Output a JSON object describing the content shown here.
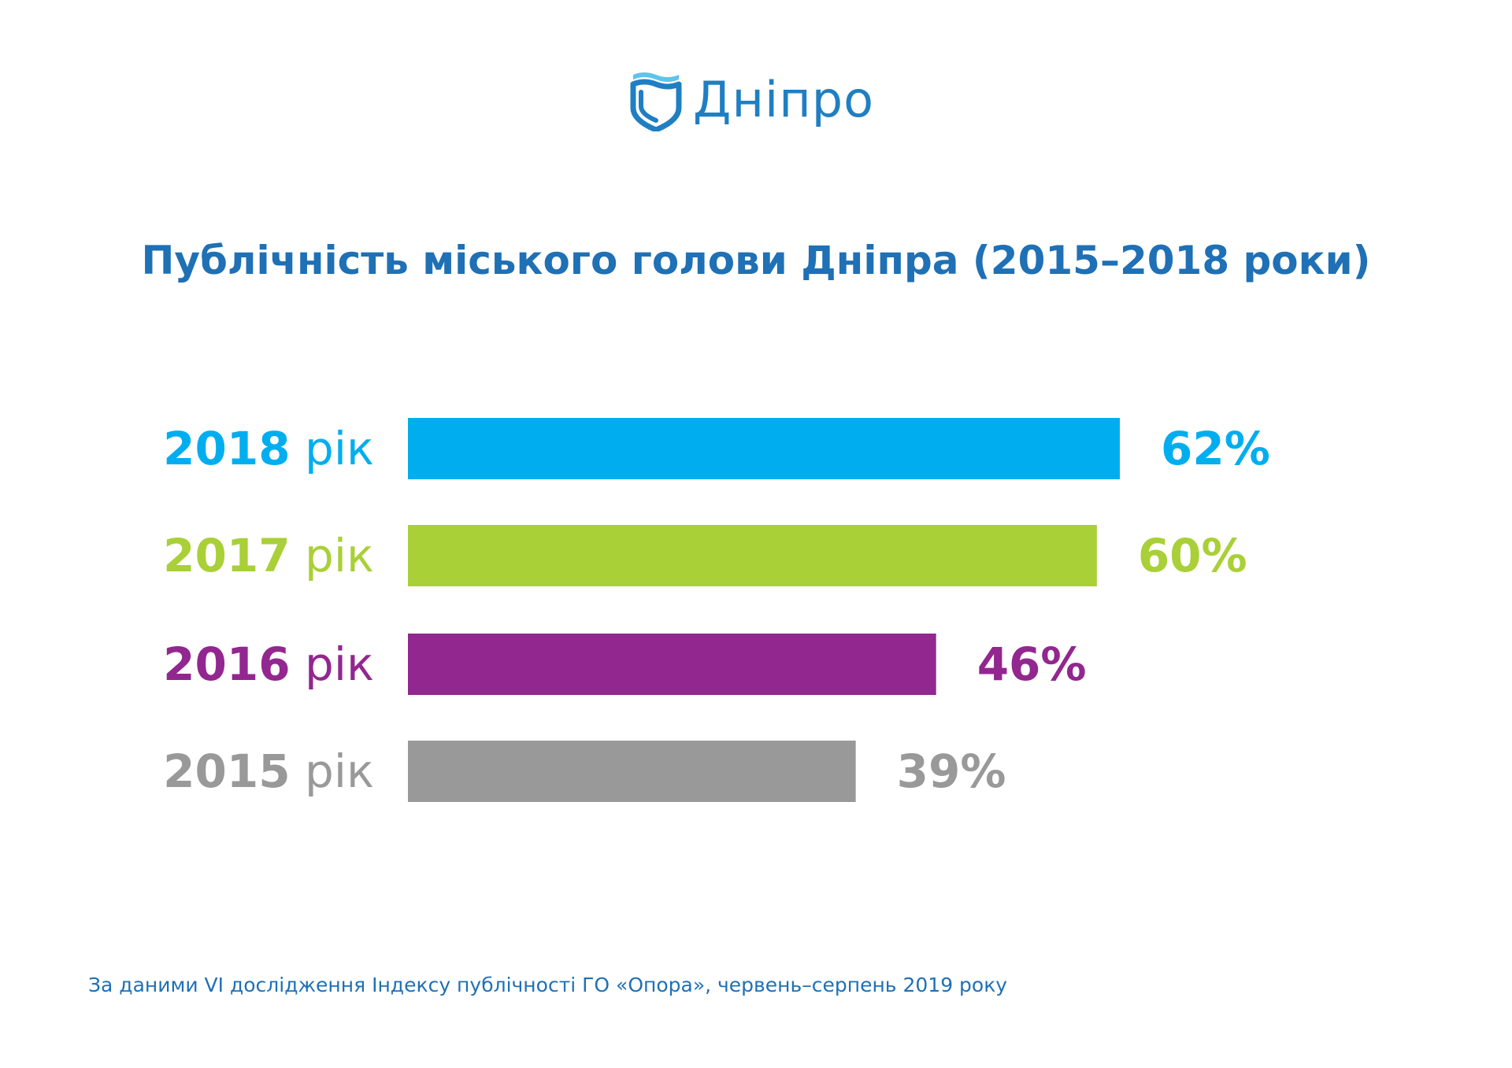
{
  "logo": {
    "name": "Дніпро",
    "icon": "shield-wave-icon",
    "color": "#1f7fc2"
  },
  "chart_data": {
    "type": "bar",
    "orientation": "horizontal",
    "title": "Публічність міського голови Дніпра (2015–2018 роки)",
    "categories": [
      {
        "year": "2018",
        "suffix": "рік"
      },
      {
        "year": "2017",
        "suffix": "рік"
      },
      {
        "year": "2016",
        "suffix": "рік"
      },
      {
        "year": "2015",
        "suffix": "рік"
      }
    ],
    "values": [
      62,
      60,
      46,
      39
    ],
    "value_labels": [
      "62%",
      "60%",
      "46%",
      "39%"
    ],
    "unit": "%",
    "colors": [
      "#00aeef",
      "#a9d037",
      "#92278f",
      "#999999"
    ],
    "xlim": [
      0,
      100
    ],
    "grid": false,
    "legend": "none"
  },
  "footer": {
    "source": "За даними VI дослідження Індексу публічності ГО «Опора», червень–серпень 2019 року"
  }
}
